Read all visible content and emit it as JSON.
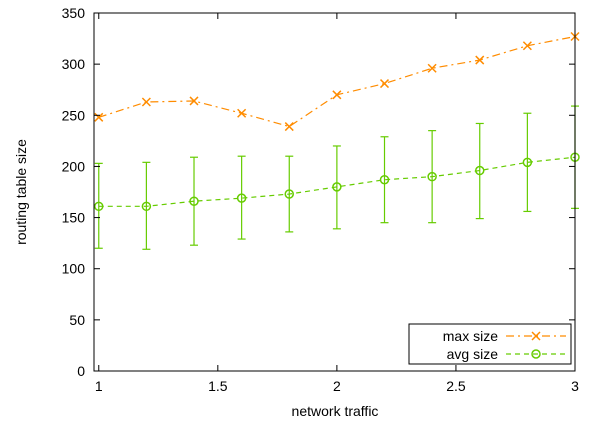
{
  "chart_data": {
    "type": "line",
    "xlabel": "network traffic",
    "ylabel": "routing table size",
    "xlim": [
      0.98,
      3.0
    ],
    "ylim": [
      0,
      350
    ],
    "xticks": [
      1,
      1.5,
      2,
      2.5,
      3
    ],
    "yticks": [
      0,
      50,
      100,
      150,
      200,
      250,
      300,
      350
    ],
    "x_tick_labels": [
      "1",
      "1.5",
      "2",
      "2.5",
      "3"
    ],
    "y_tick_labels": [
      "0",
      "50",
      "100",
      "150",
      "200",
      "250",
      "300",
      "350"
    ],
    "x": [
      1.0,
      1.2,
      1.4,
      1.6,
      1.8,
      2.0,
      2.2,
      2.4,
      2.6,
      2.8,
      3.0
    ],
    "grid": false,
    "legend_position": "bottom-right",
    "series": [
      {
        "name": "max size",
        "color": "#ff8c00",
        "marker": "x",
        "line_style": "dash-dot",
        "values": [
          248,
          263,
          264,
          252,
          239,
          270,
          281,
          296,
          304,
          318,
          327
        ]
      },
      {
        "name": "avg size",
        "color": "#66cc00",
        "marker": "circle",
        "line_style": "dashed",
        "values": [
          161,
          161,
          166,
          169,
          173,
          180,
          187,
          190,
          196,
          204,
          209
        ],
        "error_low": [
          120,
          119,
          123,
          129,
          136,
          139,
          145,
          145,
          149,
          156,
          159
        ],
        "error_high": [
          203,
          204,
          209,
          210,
          210,
          220,
          229,
          235,
          242,
          252,
          259
        ]
      }
    ]
  }
}
